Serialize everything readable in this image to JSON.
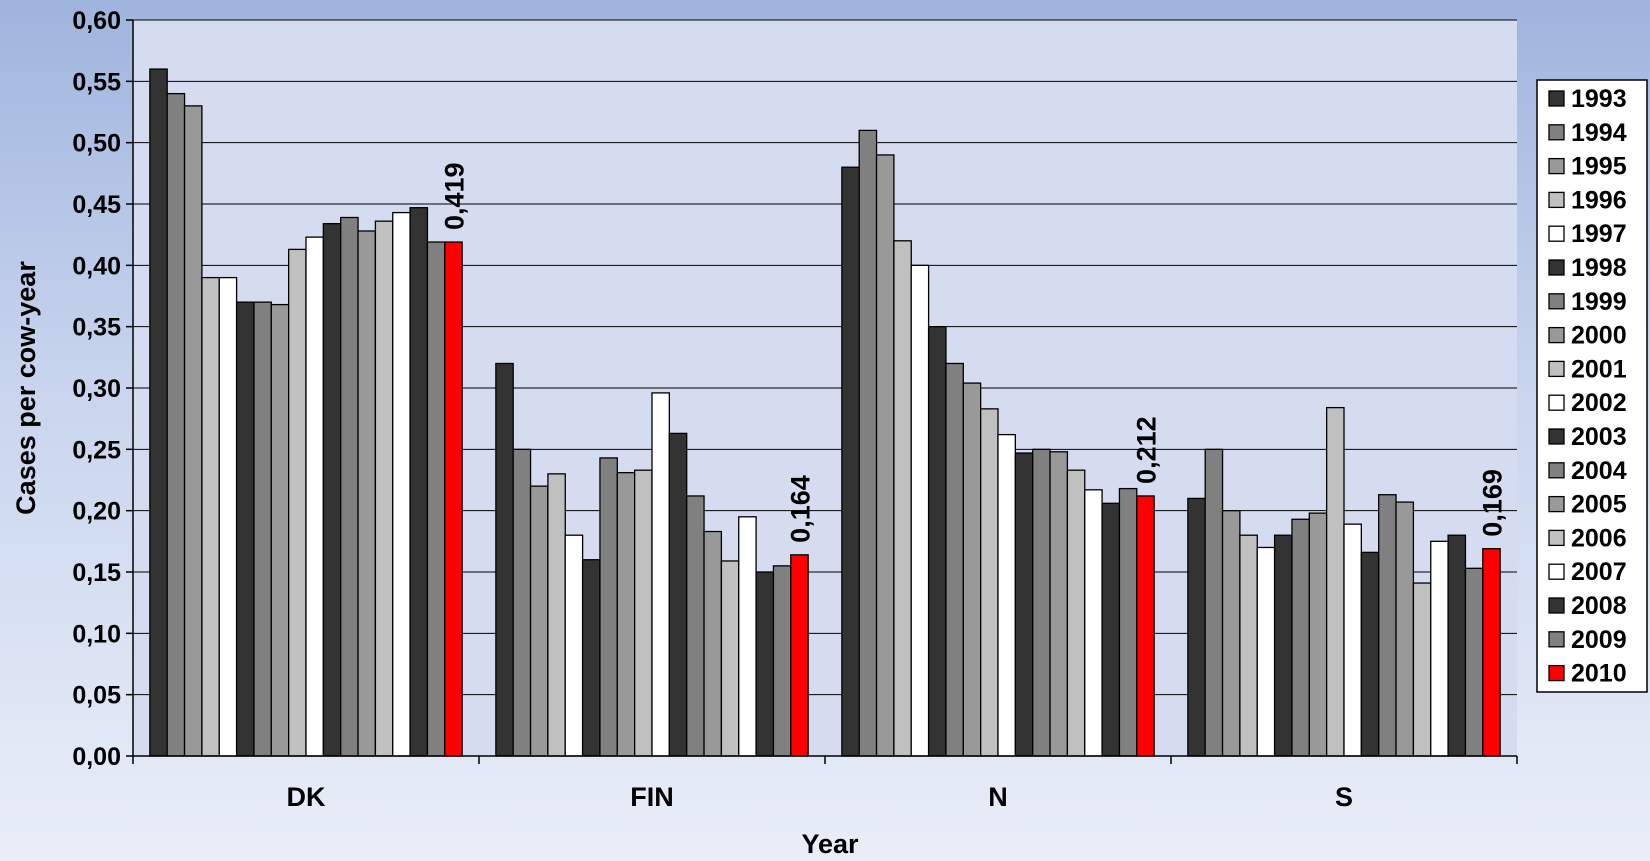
{
  "chart_data": {
    "type": "bar",
    "title": "",
    "xlabel": "Year",
    "ylabel": "Cases per cow-year",
    "ylim": [
      0,
      0.6
    ],
    "ytick_step": 0.05,
    "yticks": [
      "0,00",
      "0,05",
      "0,10",
      "0,15",
      "0,20",
      "0,25",
      "0,30",
      "0,35",
      "0,40",
      "0,45",
      "0,50",
      "0,55",
      "0,60"
    ],
    "grid": true,
    "legend_position": "right",
    "categories": [
      "DK",
      "FIN",
      "N",
      "S"
    ],
    "series": [
      {
        "name": "1993",
        "color": "#333333",
        "values": [
          0.56,
          0.32,
          0.48,
          0.21
        ]
      },
      {
        "name": "1994",
        "color": "#808080",
        "values": [
          0.54,
          0.25,
          0.51,
          0.25
        ]
      },
      {
        "name": "1995",
        "color": "#999999",
        "values": [
          0.53,
          0.22,
          0.49,
          0.2
        ]
      },
      {
        "name": "1996",
        "color": "#c0c0c0",
        "values": [
          0.39,
          0.23,
          0.42,
          0.18
        ]
      },
      {
        "name": "1997",
        "color": "#ffffff",
        "values": [
          0.39,
          0.18,
          0.4,
          0.17
        ]
      },
      {
        "name": "1998",
        "color": "#333333",
        "values": [
          0.37,
          0.16,
          0.35,
          0.18
        ]
      },
      {
        "name": "1999",
        "color": "#808080",
        "values": [
          0.37,
          0.243,
          0.32,
          0.193
        ]
      },
      {
        "name": "2000",
        "color": "#999999",
        "values": [
          0.368,
          0.231,
          0.304,
          0.198
        ]
      },
      {
        "name": "2001",
        "color": "#c0c0c0",
        "values": [
          0.413,
          0.233,
          0.283,
          0.284
        ]
      },
      {
        "name": "2002",
        "color": "#ffffff",
        "values": [
          0.423,
          0.296,
          0.262,
          0.189
        ]
      },
      {
        "name": "2003",
        "color": "#333333",
        "values": [
          0.434,
          0.263,
          0.247,
          0.166
        ]
      },
      {
        "name": "2004",
        "color": "#808080",
        "values": [
          0.439,
          0.212,
          0.25,
          0.213
        ]
      },
      {
        "name": "2005",
        "color": "#999999",
        "values": [
          0.428,
          0.183,
          0.248,
          0.207
        ]
      },
      {
        "name": "2006",
        "color": "#c0c0c0",
        "values": [
          0.436,
          0.159,
          0.233,
          0.141
        ]
      },
      {
        "name": "2007",
        "color": "#ffffff",
        "values": [
          0.443,
          0.195,
          0.217,
          0.175
        ]
      },
      {
        "name": "2008",
        "color": "#333333",
        "values": [
          0.447,
          0.15,
          0.206,
          0.18
        ]
      },
      {
        "name": "2009",
        "color": "#808080",
        "values": [
          0.419,
          0.155,
          0.218,
          0.153
        ]
      },
      {
        "name": "2010",
        "color": "#ff0000",
        "values": [
          0.419,
          0.164,
          0.212,
          0.169
        ]
      }
    ],
    "data_labels": [
      {
        "category": "DK",
        "series": "2010",
        "text": "0,419"
      },
      {
        "category": "FIN",
        "series": "2010",
        "text": "0,164"
      },
      {
        "category": "N",
        "series": "2010",
        "text": "0,212"
      },
      {
        "category": "S",
        "series": "2010",
        "text": "0,169"
      }
    ]
  }
}
